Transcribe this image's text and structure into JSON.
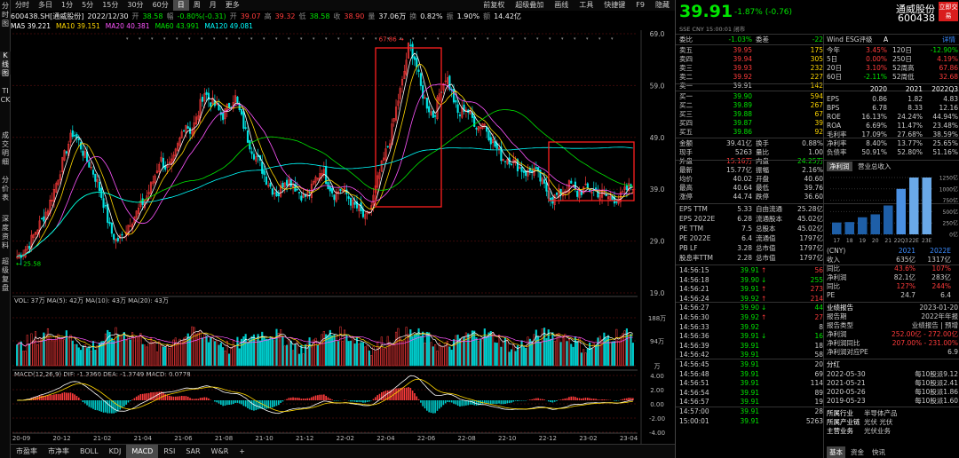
{
  "left_tabs": [
    "分时图",
    "K线图",
    "TICK",
    "成交明细",
    "分价表",
    "深度资料",
    "超级复盘"
  ],
  "periods": [
    "分时",
    "多日",
    "1分",
    "5分",
    "15分",
    "30分",
    "60分",
    "日",
    "周",
    "月",
    "更多"
  ],
  "active_period": "日",
  "top_right": [
    "前复权",
    "超级叠加",
    "画线",
    "工具",
    "快捷键",
    "F9",
    "隐藏"
  ],
  "info": {
    "code": "600438.SH[通威股份]",
    "date": "2022/12/30",
    "open_label": "开",
    "open": "38.58",
    "chg_label": "幅",
    "chg": "-0.80%(-0.31)",
    "high_label": "开",
    "high_val": "39.07",
    "h_label": "高",
    "h": "39.32",
    "l_label": "低",
    "l": "38.58",
    "c_label": "收",
    "c": "38.90",
    "vol_label": "量",
    "vol": "37.06万",
    "turn_label": "换",
    "turn": "0.82%",
    "amp_label": "振",
    "amp": "1.90%",
    "amt_label": "额",
    "amt": "14.42亿"
  },
  "ma_legend": [
    {
      "t": "MA5",
      "v": "39.221",
      "c": "#ffffff"
    },
    {
      "t": "MA10",
      "v": "39.151",
      "c": "#ffd700"
    },
    {
      "t": "MA20",
      "v": "40.381",
      "c": "#ff55ff"
    },
    {
      "t": "MA60",
      "v": "43.991",
      "c": "#00e600"
    },
    {
      "t": "MA120",
      "v": "49.081",
      "c": "#00ffff"
    }
  ],
  "range_label": "2020/09/29-2023/04/19(618日)",
  "price_axis": [
    "69.0",
    "59.0",
    "49.0",
    "39.0",
    "29.0",
    "19.0"
  ],
  "peak_label": "67.86",
  "low_label": "25.58",
  "vol_legend": "VOL: 37万  MA(5): 42万  MA(10): 43万  MA(20): 43万",
  "vol_axis": [
    "188万",
    "94万",
    "万"
  ],
  "macd_legend": "MACD(12,26,9)  DIF: -1.3360  DEA: -1.3749  MACD: 0.0778",
  "macd_axis": [
    "4.00",
    "2.00",
    "0.00",
    "-2.00",
    "-4.00"
  ],
  "date_axis": [
    "20-09",
    "20-12",
    "21-02",
    "21-04",
    "21-06",
    "21-08",
    "21-10",
    "21-12",
    "22-02",
    "22-04",
    "22-06",
    "22-08",
    "22-10",
    "22-12",
    "23-02",
    "23-04"
  ],
  "bottom_tabs": [
    "市盈率",
    "市净率",
    "BOLL",
    "KDJ",
    "MACD",
    "RSI",
    "SAR",
    "W&R"
  ],
  "bottom_active": "MACD",
  "quote": {
    "price": "39.91",
    "change": "-1.87%",
    "change_abs": "(-0.76)",
    "name": "通威股份",
    "code": "600438",
    "btn": "立即交易",
    "market": "SSE  CNY  15:00:01  闭市"
  },
  "order_book": {
    "commit_label": "委比",
    "commit": "-1.03%",
    "diff_label": "委差",
    "diff": "-22",
    "asks": [
      {
        "l": "卖五",
        "p": "39.95",
        "v": "175"
      },
      {
        "l": "卖四",
        "p": "39.94",
        "v": "305"
      },
      {
        "l": "卖三",
        "p": "39.93",
        "v": "232"
      },
      {
        "l": "卖二",
        "p": "39.92",
        "v": "227"
      },
      {
        "l": "卖一",
        "p": "39.91",
        "v": "142"
      }
    ],
    "bids": [
      {
        "l": "买一",
        "p": "39.90",
        "v": "594"
      },
      {
        "l": "买二",
        "p": "39.89",
        "v": "267"
      },
      {
        "l": "买三",
        "p": "39.88",
        "v": "67"
      },
      {
        "l": "买四",
        "p": "39.87",
        "v": "39"
      },
      {
        "l": "买五",
        "p": "39.86",
        "v": "92"
      }
    ]
  },
  "esg": {
    "label": "Wind ESG评级",
    "grade": "A",
    "detail": "详情"
  },
  "returns": [
    {
      "a": "今年",
      "av": "3.45%",
      "b": "120日",
      "bv": "-12.90%"
    },
    {
      "a": "5日",
      "av": "0.00%",
      "b": "250日",
      "bv": "4.19%"
    },
    {
      "a": "20日",
      "av": "3.10%",
      "b": "52周高",
      "bv": "67.86"
    },
    {
      "a": "60日",
      "av": "-2.11%",
      "b": "52周低",
      "bv": "32.68"
    }
  ],
  "fin_years": [
    "2020",
    "2021",
    "2022Q3"
  ],
  "fin": [
    {
      "l": "EPS",
      "v": [
        "0.86",
        "1.82",
        "4.83"
      ]
    },
    {
      "l": "BPS",
      "v": [
        "6.78",
        "8.33",
        "12.16"
      ]
    },
    {
      "l": "ROE",
      "v": [
        "16.13%",
        "24.24%",
        "44.94%"
      ]
    },
    {
      "l": "ROA",
      "v": [
        "6.69%",
        "11.47%",
        "23.48%"
      ]
    },
    {
      "l": "毛利率",
      "v": [
        "17.09%",
        "27.68%",
        "38.59%"
      ]
    },
    {
      "l": "净利率",
      "v": [
        "8.40%",
        "13.77%",
        "25.65%"
      ]
    },
    {
      "l": "负债率",
      "v": [
        "50.91%",
        "52.80%",
        "51.16%"
      ]
    }
  ],
  "stats": [
    {
      "a": "金额",
      "av": "39.41亿",
      "b": "换手",
      "bv": "0.88%"
    },
    {
      "a": "现手",
      "av": "5263",
      "b": "量比",
      "bv": "1.00"
    },
    {
      "a": "外盘",
      "av": "15.16万",
      "b": "内盘",
      "bv": "24.25万"
    },
    {
      "a": "最新",
      "av": "15.77亿",
      "b": "振幅",
      "bv": "2.16%"
    },
    {
      "a": "均价",
      "av": "40.02",
      "b": "开盘",
      "bv": "40.60"
    },
    {
      "a": "最高",
      "av": "40.64",
      "b": "最低",
      "bv": "39.76"
    },
    {
      "a": "涨停",
      "av": "44.74",
      "b": "跌停",
      "bv": "36.60"
    }
  ],
  "fundamentals": [
    {
      "a": "EPS TTM",
      "av": "5.33",
      "b": "自由流通",
      "bv": "25.28亿"
    },
    {
      "a": "EPS 2022E",
      "av": "6.28",
      "b": "流通股本",
      "bv": "45.02亿"
    },
    {
      "a": "PE TTM",
      "av": "7.5",
      "b": "总股本",
      "bv": "45.02亿"
    },
    {
      "a": "PE 2022E",
      "av": "6.4",
      "b": "流通值",
      "bv": "1797亿"
    },
    {
      "a": "PB LF",
      "av": "3.28",
      "b": "总市值",
      "bv": "1797亿"
    },
    {
      "a": "股息率TTM",
      "av": "2.28",
      "b": "总市值",
      "bv": "1797亿"
    }
  ],
  "ticks": [
    {
      "t": "14:56:15",
      "p": "39.91",
      "v": "56",
      "d": "up"
    },
    {
      "t": "14:56:18",
      "p": "39.90",
      "v": "255",
      "d": "dn"
    },
    {
      "t": "14:56:21",
      "p": "39.91",
      "v": "273",
      "d": "up"
    },
    {
      "t": "14:56:24",
      "p": "39.92",
      "v": "214",
      "d": "up"
    },
    {
      "t": "14:56:27",
      "p": "39.90",
      "v": "44",
      "d": "dn"
    },
    {
      "t": "14:56:30",
      "p": "39.92",
      "v": "27",
      "d": "up"
    },
    {
      "t": "14:56:33",
      "p": "39.92",
      "v": "8",
      "d": ""
    },
    {
      "t": "14:56:36",
      "p": "39.91",
      "v": "16",
      "d": "dn"
    },
    {
      "t": "14:56:39",
      "p": "39.91",
      "v": "18",
      "d": ""
    },
    {
      "t": "14:56:42",
      "p": "39.91",
      "v": "58",
      "d": ""
    },
    {
      "t": "14:56:45",
      "p": "39.91",
      "v": "20",
      "d": ""
    },
    {
      "t": "14:56:48",
      "p": "39.91",
      "v": "69",
      "d": ""
    },
    {
      "t": "14:56:51",
      "p": "39.91",
      "v": "114",
      "d": ""
    },
    {
      "t": "14:56:54",
      "p": "39.91",
      "v": "89",
      "d": ""
    },
    {
      "t": "14:56:57",
      "p": "39.91",
      "v": "19",
      "d": ""
    },
    {
      "t": "14:57:00",
      "p": "39.91",
      "v": "28",
      "d": ""
    },
    {
      "t": "15:00:01",
      "p": "39.91",
      "v": "5263",
      "d": ""
    }
  ],
  "rev_tabs": [
    "净利润",
    "营业总收入"
  ],
  "rev_chart": {
    "type": "bar",
    "categories": [
      "17",
      "18",
      "19",
      "20",
      "21",
      "22Q3",
      "22E",
      "23E"
    ],
    "values": [
      260,
      270,
      375,
      440,
      635,
      1000,
      1317,
      1443
    ],
    "yaxis": [
      "1250亿",
      "1000亿",
      "750亿",
      "500亿",
      "250亿",
      "0亿"
    ]
  },
  "rev_table": {
    "head": [
      "(CNY)",
      "2021",
      "2022E",
      "2023E"
    ],
    "rows": [
      {
        "l": "收入",
        "v": [
          "635亿",
          "1317亿",
          "1443亿"
        ]
      },
      {
        "l": "同比",
        "v": [
          "43.6%",
          "107%",
          "9.62%"
        ]
      },
      {
        "l": "净利润",
        "v": [
          "82.1亿",
          "283亿",
          "223亿"
        ]
      },
      {
        "l": "同比",
        "v": [
          "127%",
          "244%",
          "-21.0%"
        ]
      },
      {
        "l": "PE",
        "v": [
          "24.7",
          "6.4",
          "8.0"
        ]
      }
    ]
  },
  "forecast": [
    {
      "a": "业绩报告",
      "b": "2023-01-20"
    },
    {
      "a": "报告期",
      "b": "2022年年报"
    },
    {
      "a": "报告类型",
      "b": "业绩报告 | 预增"
    },
    {
      "a": "净利润",
      "b": "252.00亿 - 272.00亿"
    },
    {
      "a": "净利润同比",
      "b": "207.00% - 231.00%"
    },
    {
      "a": "净利润对应PE",
      "b": "6.9"
    }
  ],
  "dividend_title": "分红",
  "dividends": [
    {
      "a": "2022-05-30",
      "b": "每10股派9.12"
    },
    {
      "a": "2021-05-21",
      "b": "每10股派2.41"
    },
    {
      "a": "2020-05-26",
      "b": "每10股派1.86"
    },
    {
      "a": "2019-05-23",
      "b": "每10股派1.60"
    }
  ],
  "industry": [
    {
      "a": "所属行业",
      "b": "半导体产品"
    },
    {
      "a": "所属产业链",
      "b": "光伏  光伏"
    },
    {
      "a": "主营业务",
      "b": "光伏业务"
    }
  ],
  "right_bottom_tabs": [
    "基本",
    "资金",
    "快讯"
  ],
  "right_bottom_active": "基本",
  "chart_data": {
    "type": "candlestick",
    "x_range": [
      "2020-09",
      "2023-04"
    ],
    "ylim": [
      19,
      69
    ],
    "peak": 67.86,
    "low": 25.58,
    "close_path": [
      26,
      27,
      28.5,
      31,
      33,
      35.5,
      39,
      43,
      47,
      50,
      48,
      45,
      43,
      40,
      36,
      31,
      29,
      30,
      32.5,
      34,
      36,
      38,
      41,
      45,
      43,
      44,
      48,
      52,
      50,
      53,
      58,
      56,
      55,
      53,
      55,
      57,
      53,
      49,
      46,
      44,
      41,
      39,
      38,
      41,
      40.5,
      39,
      37.5,
      38,
      41,
      43,
      40,
      38,
      39,
      38,
      36,
      35,
      33,
      36,
      41,
      45,
      49,
      55,
      60,
      67,
      64,
      58,
      55,
      53,
      58,
      61,
      57,
      53,
      55,
      53,
      51,
      52,
      49,
      47,
      45,
      45,
      44,
      43,
      42,
      43,
      41,
      39,
      37,
      38,
      39,
      40,
      38,
      39,
      39,
      38.5,
      38,
      37.5,
      37.2,
      37.5,
      39,
      39.91
    ]
  }
}
